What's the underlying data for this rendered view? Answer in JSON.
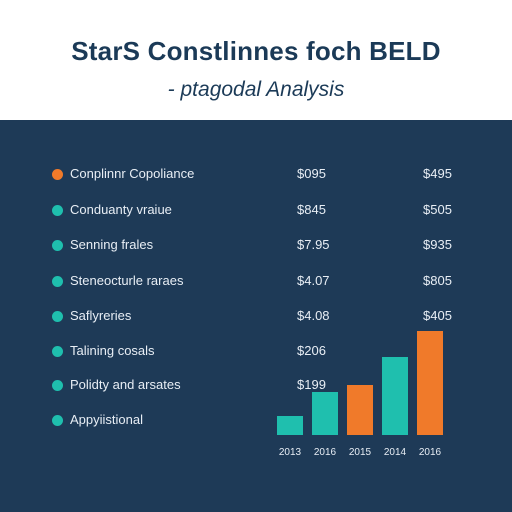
{
  "header": {
    "title": "StarS Constlinnes foch BELD",
    "subtitle": "- ptagodal Analysis"
  },
  "rows": [
    {
      "label": "Conplinnr Copoliance",
      "value_1": "$095",
      "value_2": "$495",
      "dot_color": "#f07a2a"
    },
    {
      "label": "Conduanty vraiue",
      "value_1": "$845",
      "value_2": "$505",
      "dot_color": "#1fbfae"
    },
    {
      "label": "Senning frales",
      "value_1": "$7.95",
      "value_2": "$935",
      "dot_color": "#1fbfae"
    },
    {
      "label": "Steneocturle raraes",
      "value_1": "$4.07",
      "value_2": "$805",
      "dot_color": "#1fbfae"
    },
    {
      "label": "Saflyreries",
      "value_1": "$4.08",
      "value_2": "$405",
      "dot_color": "#1fbfae"
    },
    {
      "label": "Talining cosals",
      "value_1": "$206",
      "value_2": "$",
      "dot_color": "#1fbfae"
    },
    {
      "label": "Polidty and arsates",
      "value_1": "$199",
      "value_2": "$",
      "dot_color": "#1fbfae"
    },
    {
      "label": "Appyiistional",
      "value_1": "",
      "value_2": "$",
      "dot_color": "#1fbfae"
    }
  ],
  "chart_data": {
    "type": "bar",
    "categories": [
      "2013",
      "2016",
      "2015",
      "2014",
      "2016"
    ],
    "values": [
      19,
      43,
      50,
      78,
      104
    ],
    "bar_colors": [
      "#1fbfae",
      "#1fbfae",
      "#f07a2a",
      "#1fbfae",
      "#f07a2a"
    ],
    "ylim": [
      0,
      110
    ],
    "grid": false
  },
  "colors": {
    "background": "#1e3a57",
    "header_background": "#ffffff",
    "title_text": "#1b3a57",
    "accent_orange": "#f07a2a",
    "accent_teal": "#1fbfae"
  }
}
